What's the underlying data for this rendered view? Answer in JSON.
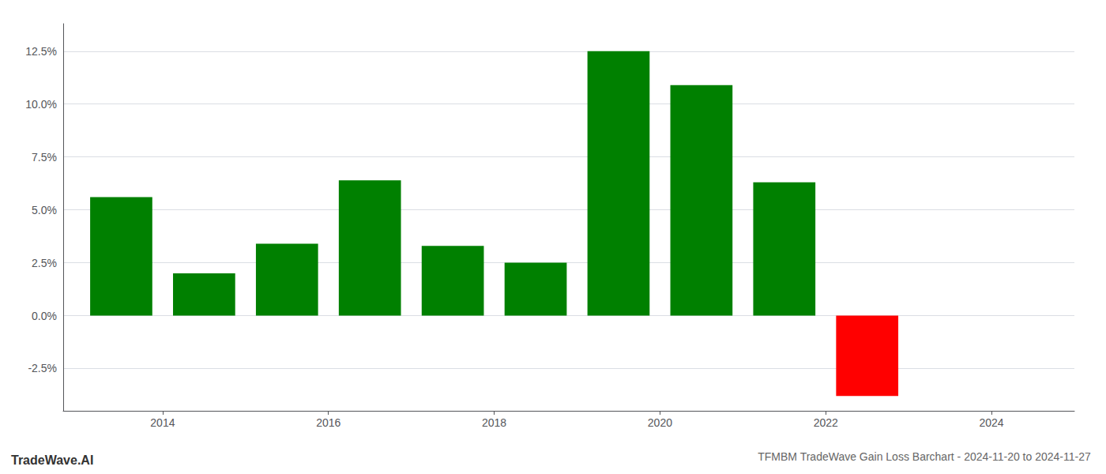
{
  "chart_data": {
    "type": "bar",
    "title": "TFMBM TradeWave Gain Loss Barchart - 2024-11-20 to 2024-11-27",
    "annotations": [
      "TradeWave.AI"
    ],
    "x": [
      2013.5,
      2014.5,
      2015.5,
      2016.5,
      2017.5,
      2018.5,
      2019.5,
      2020.5,
      2021.5,
      2022.5
    ],
    "values": [
      0.056,
      0.02,
      0.034,
      0.064,
      0.033,
      0.025,
      0.125,
      0.109,
      0.063,
      -0.038
    ],
    "colors": [
      "#008000",
      "#008000",
      "#008000",
      "#008000",
      "#008000",
      "#008000",
      "#008000",
      "#008000",
      "#008000",
      "#ff0000"
    ],
    "xlim": [
      2012.8,
      2025.0
    ],
    "xticks": [
      2014,
      2016,
      2018,
      2020,
      2022,
      2024
    ],
    "ylim": [
      -0.045,
      0.138
    ],
    "yticks": [
      {
        "value": -0.025,
        "label": "-2.5%"
      },
      {
        "value": 0.0,
        "label": "0.0%"
      },
      {
        "value": 0.025,
        "label": "2.5%"
      },
      {
        "value": 0.05,
        "label": "5.0%"
      },
      {
        "value": 0.075,
        "label": "7.5%"
      },
      {
        "value": 0.1,
        "label": "10.0%"
      },
      {
        "value": 0.125,
        "label": "12.5%"
      }
    ],
    "grid": true
  }
}
